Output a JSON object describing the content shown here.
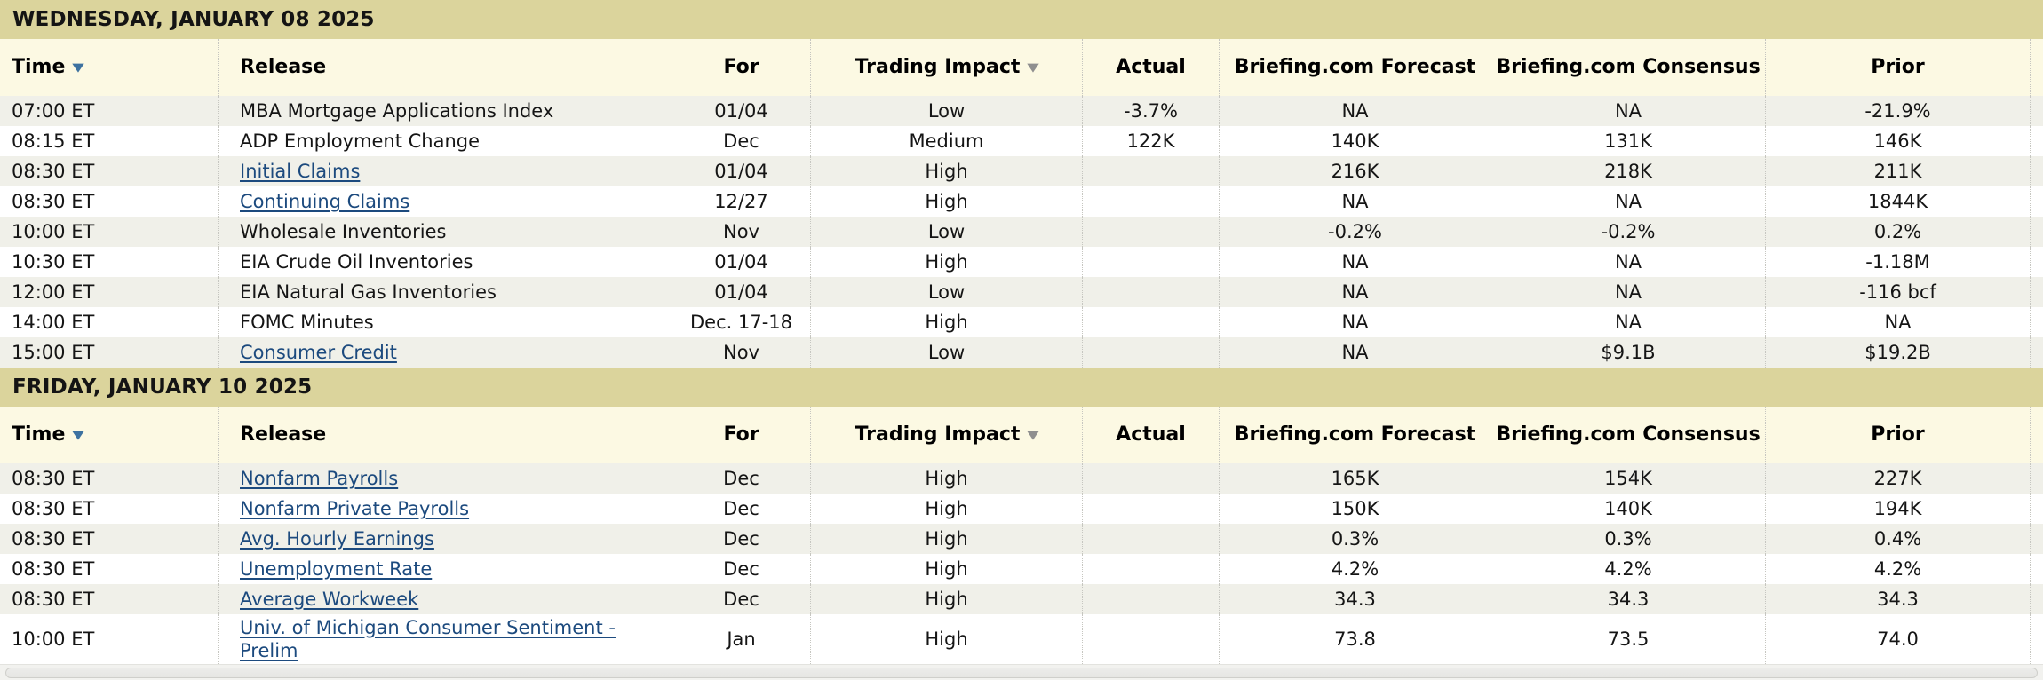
{
  "colors": {
    "date_band_bg": "#dbd49c",
    "header_bg": "#fcf9e3",
    "row_stripe_bg": "#f0f0e9",
    "link_color": "#1c4a7e",
    "sort_arrow_time": "#3d72a0",
    "sort_arrow_impact": "#8f8f8f"
  },
  "icons": {
    "time_sort": "sort-desc-icon",
    "impact_sort": "sort-desc-icon",
    "glyph": "▼"
  },
  "columns": [
    {
      "key": "time",
      "label": "Time",
      "align": "left",
      "sortable": true
    },
    {
      "key": "release",
      "label": "Release",
      "align": "left",
      "sortable": false
    },
    {
      "key": "for",
      "label": "For",
      "align": "center",
      "sortable": false
    },
    {
      "key": "impact",
      "label": "Trading Impact",
      "align": "center",
      "sortable": true
    },
    {
      "key": "actual",
      "label": "Actual",
      "align": "center",
      "sortable": false
    },
    {
      "key": "forecast",
      "label": "Briefing.com Forecast",
      "align": "center",
      "sortable": false
    },
    {
      "key": "consensus",
      "label": "Briefing.com Consensus",
      "align": "center",
      "sortable": false
    },
    {
      "key": "prior",
      "label": "Prior",
      "align": "center",
      "sortable": false
    }
  ],
  "sections": [
    {
      "date": "WEDNESDAY, JANUARY 08 2025",
      "rows": [
        {
          "time": "07:00 ET",
          "release": "MBA Mortgage Applications Index",
          "link": false,
          "for": "01/04",
          "impact": "Low",
          "actual": "-3.7%",
          "forecast": "NA",
          "consensus": "NA",
          "prior": "-21.9%"
        },
        {
          "time": "08:15 ET",
          "release": "ADP Employment Change",
          "link": false,
          "for": "Dec",
          "impact": "Medium",
          "actual": "122K",
          "forecast": "140K",
          "consensus": "131K",
          "prior": "146K"
        },
        {
          "time": "08:30 ET",
          "release": "Initial Claims",
          "link": true,
          "for": "01/04",
          "impact": "High",
          "actual": "",
          "forecast": "216K",
          "consensus": "218K",
          "prior": "211K"
        },
        {
          "time": "08:30 ET",
          "release": "Continuing Claims",
          "link": true,
          "for": "12/27",
          "impact": "High",
          "actual": "",
          "forecast": "NA",
          "consensus": "NA",
          "prior": "1844K"
        },
        {
          "time": "10:00 ET",
          "release": "Wholesale Inventories",
          "link": false,
          "for": "Nov",
          "impact": "Low",
          "actual": "",
          "forecast": "-0.2%",
          "consensus": "-0.2%",
          "prior": "0.2%"
        },
        {
          "time": "10:30 ET",
          "release": "EIA Crude Oil Inventories",
          "link": false,
          "for": "01/04",
          "impact": "High",
          "actual": "",
          "forecast": "NA",
          "consensus": "NA",
          "prior": "-1.18M"
        },
        {
          "time": "12:00 ET",
          "release": "EIA Natural Gas Inventories",
          "link": false,
          "for": "01/04",
          "impact": "Low",
          "actual": "",
          "forecast": "NA",
          "consensus": "NA",
          "prior": "-116 bcf"
        },
        {
          "time": "14:00 ET",
          "release": "FOMC Minutes",
          "link": false,
          "for": "Dec. 17-18",
          "impact": "High",
          "actual": "",
          "forecast": "NA",
          "consensus": "NA",
          "prior": "NA"
        },
        {
          "time": "15:00 ET",
          "release": "Consumer Credit",
          "link": true,
          "for": "Nov",
          "impact": "Low",
          "actual": "",
          "forecast": "NA",
          "consensus": "$9.1B",
          "prior": "$19.2B"
        }
      ]
    },
    {
      "date": "FRIDAY, JANUARY 10 2025",
      "rows": [
        {
          "time": "08:30 ET",
          "release": "Nonfarm Payrolls",
          "link": true,
          "for": "Dec",
          "impact": "High",
          "actual": "",
          "forecast": "165K",
          "consensus": "154K",
          "prior": "227K"
        },
        {
          "time": "08:30 ET",
          "release": "Nonfarm Private Payrolls",
          "link": true,
          "for": "Dec",
          "impact": "High",
          "actual": "",
          "forecast": "150K",
          "consensus": "140K",
          "prior": "194K"
        },
        {
          "time": "08:30 ET",
          "release": "Avg. Hourly Earnings",
          "link": true,
          "for": "Dec",
          "impact": "High",
          "actual": "",
          "forecast": "0.3%",
          "consensus": "0.3%",
          "prior": "0.4%"
        },
        {
          "time": "08:30 ET",
          "release": "Unemployment Rate",
          "link": true,
          "for": "Dec",
          "impact": "High",
          "actual": "",
          "forecast": "4.2%",
          "consensus": "4.2%",
          "prior": "4.2%"
        },
        {
          "time": "08:30 ET",
          "release": "Average Workweek",
          "link": true,
          "for": "Dec",
          "impact": "High",
          "actual": "",
          "forecast": "34.3",
          "consensus": "34.3",
          "prior": "34.3"
        },
        {
          "time": "10:00 ET",
          "release": "Univ. of Michigan Consumer Sentiment - Prelim",
          "link": true,
          "for": "Jan",
          "impact": "High",
          "actual": "",
          "forecast": "73.8",
          "consensus": "73.5",
          "prior": "74.0",
          "tall": true
        }
      ]
    }
  ]
}
